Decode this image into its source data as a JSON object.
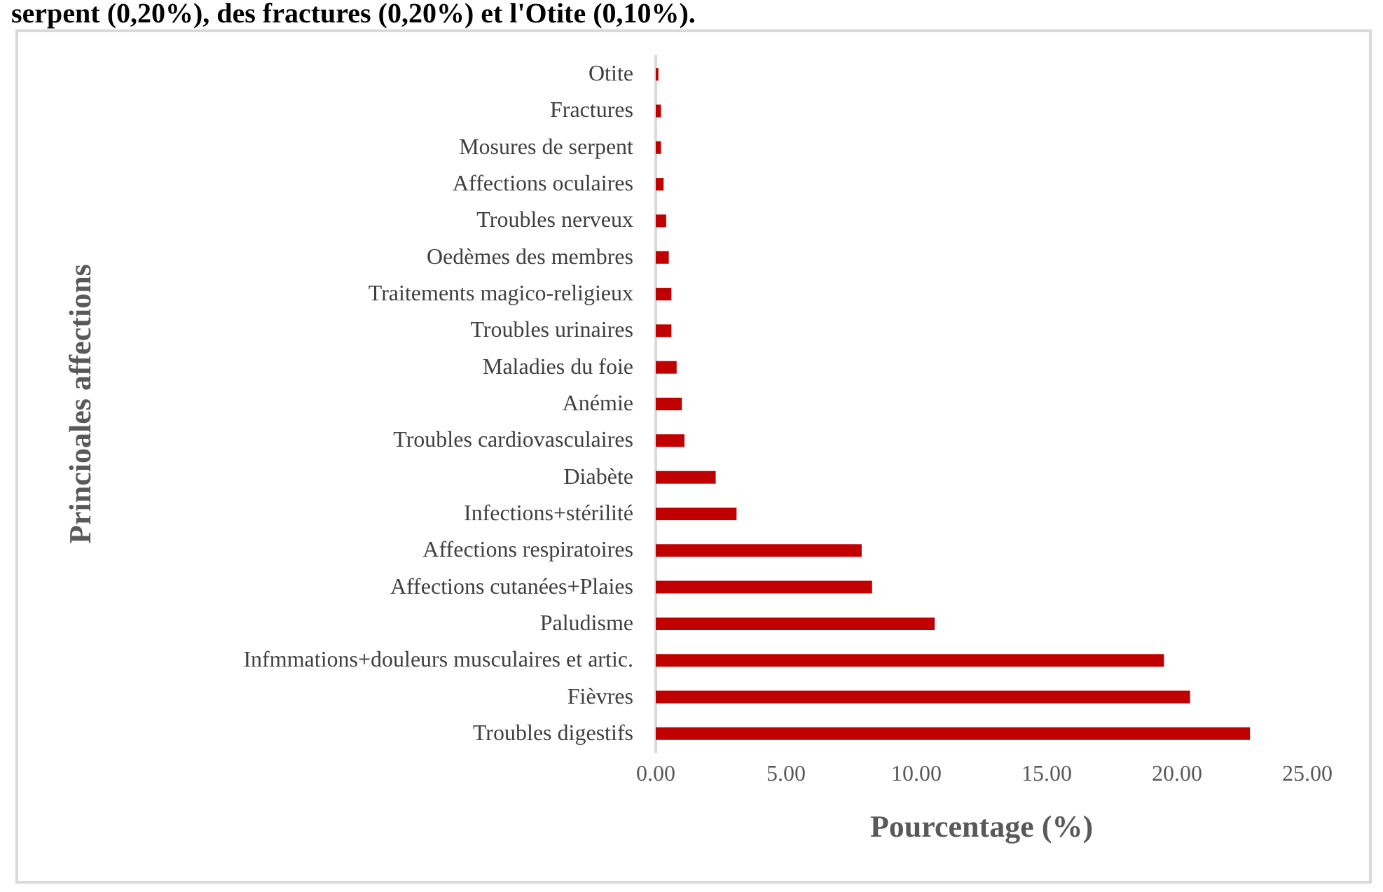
{
  "chart_data": {
    "type": "bar",
    "orientation": "horizontal",
    "xlabel": "Pourcentage (%)",
    "ylabel": "Princioales affections",
    "annotations": [
      "serpent (0,20%), des fractures (0,20%) et l'Otite (0,10%)."
    ],
    "categories": [
      "Otite",
      "Fractures",
      "Mosures de serpent",
      "Affections oculaires",
      "Troubles nerveux",
      "Oedèmes des membres",
      "Traitements magico-religieux",
      "Troubles urinaires",
      "Maladies du foie",
      "Anémie",
      "Troubles cardiovasculaires",
      "Diabète",
      "Infections+stérilité",
      "Affections respiratoires",
      "Affections cutanées+Plaies",
      "Paludisme",
      "Infmmations+douleurs musculaires et artic.",
      "Fièvres",
      "Troubles digestifs"
    ],
    "values": [
      0.1,
      0.2,
      0.2,
      0.3,
      0.4,
      0.5,
      0.6,
      0.6,
      0.8,
      1.0,
      1.1,
      2.3,
      3.1,
      7.9,
      8.3,
      10.7,
      19.5,
      20.5,
      22.8
    ],
    "color": "#c00000",
    "xlim": [
      0,
      25
    ],
    "xticks": [
      {
        "value": 0,
        "label": "0.00"
      },
      {
        "value": 5,
        "label": "5.00"
      },
      {
        "value": 10,
        "label": "10.00"
      },
      {
        "value": 15,
        "label": "15.00"
      },
      {
        "value": 20,
        "label": "20.00"
      },
      {
        "value": 25,
        "label": "25.00"
      }
    ],
    "grid": false
  }
}
